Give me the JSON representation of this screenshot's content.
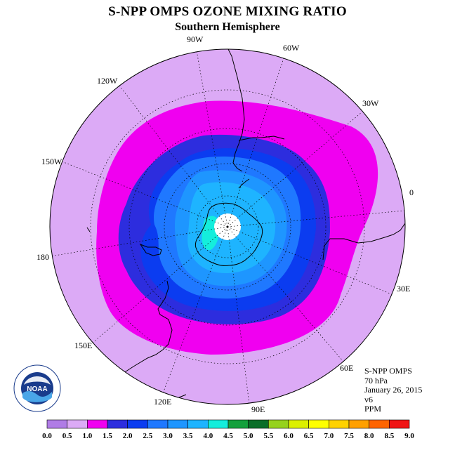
{
  "header": {
    "title": "S-NPP OMPS OZONE MIXING RATIO",
    "subtitle": "Southern Hemisphere"
  },
  "longitude_labels": [
    "0",
    "30E",
    "60E",
    "90E",
    "120E",
    "150E",
    "180",
    "150W",
    "120W",
    "90W",
    "60W",
    "30W"
  ],
  "info": {
    "instrument": "S-NPP OMPS",
    "level": "70 hPa",
    "date": "January 26, 2015",
    "version": "v6",
    "units": "PPM"
  },
  "logo": {
    "text": "NOAA",
    "icon": "noaa-logo-icon"
  },
  "colorbar": {
    "ticks": [
      "0.0",
      "0.5",
      "1.0",
      "1.5",
      "2.0",
      "2.5",
      "3.0",
      "3.5",
      "4.0",
      "4.5",
      "5.0",
      "5.5",
      "6.0",
      "6.5",
      "7.0",
      "7.5",
      "8.0",
      "8.5",
      "9.0"
    ],
    "colors": [
      "#b07ce6",
      "#dcaaf6",
      "#f000f0",
      "#2d2dde",
      "#0b3cf0",
      "#1f78ff",
      "#1e96ff",
      "#1eb4ff",
      "#14eedc",
      "#14a03c",
      "#0a6e28",
      "#96d21e",
      "#dcf000",
      "#ffff00",
      "#ffd200",
      "#ffa000",
      "#ff6400",
      "#f01414",
      "#8c5a32"
    ]
  },
  "map": {
    "colors": {
      "background": "#dcaaf6",
      "magenta": "#f000f0",
      "dark_blue": "#0b3cf0",
      "blue": "#1f78ff",
      "light_blue": "#1e96ff",
      "cyan": "#1eb4ff",
      "aqua": "#14eedc",
      "pole_hole": "#ffffff"
    }
  }
}
